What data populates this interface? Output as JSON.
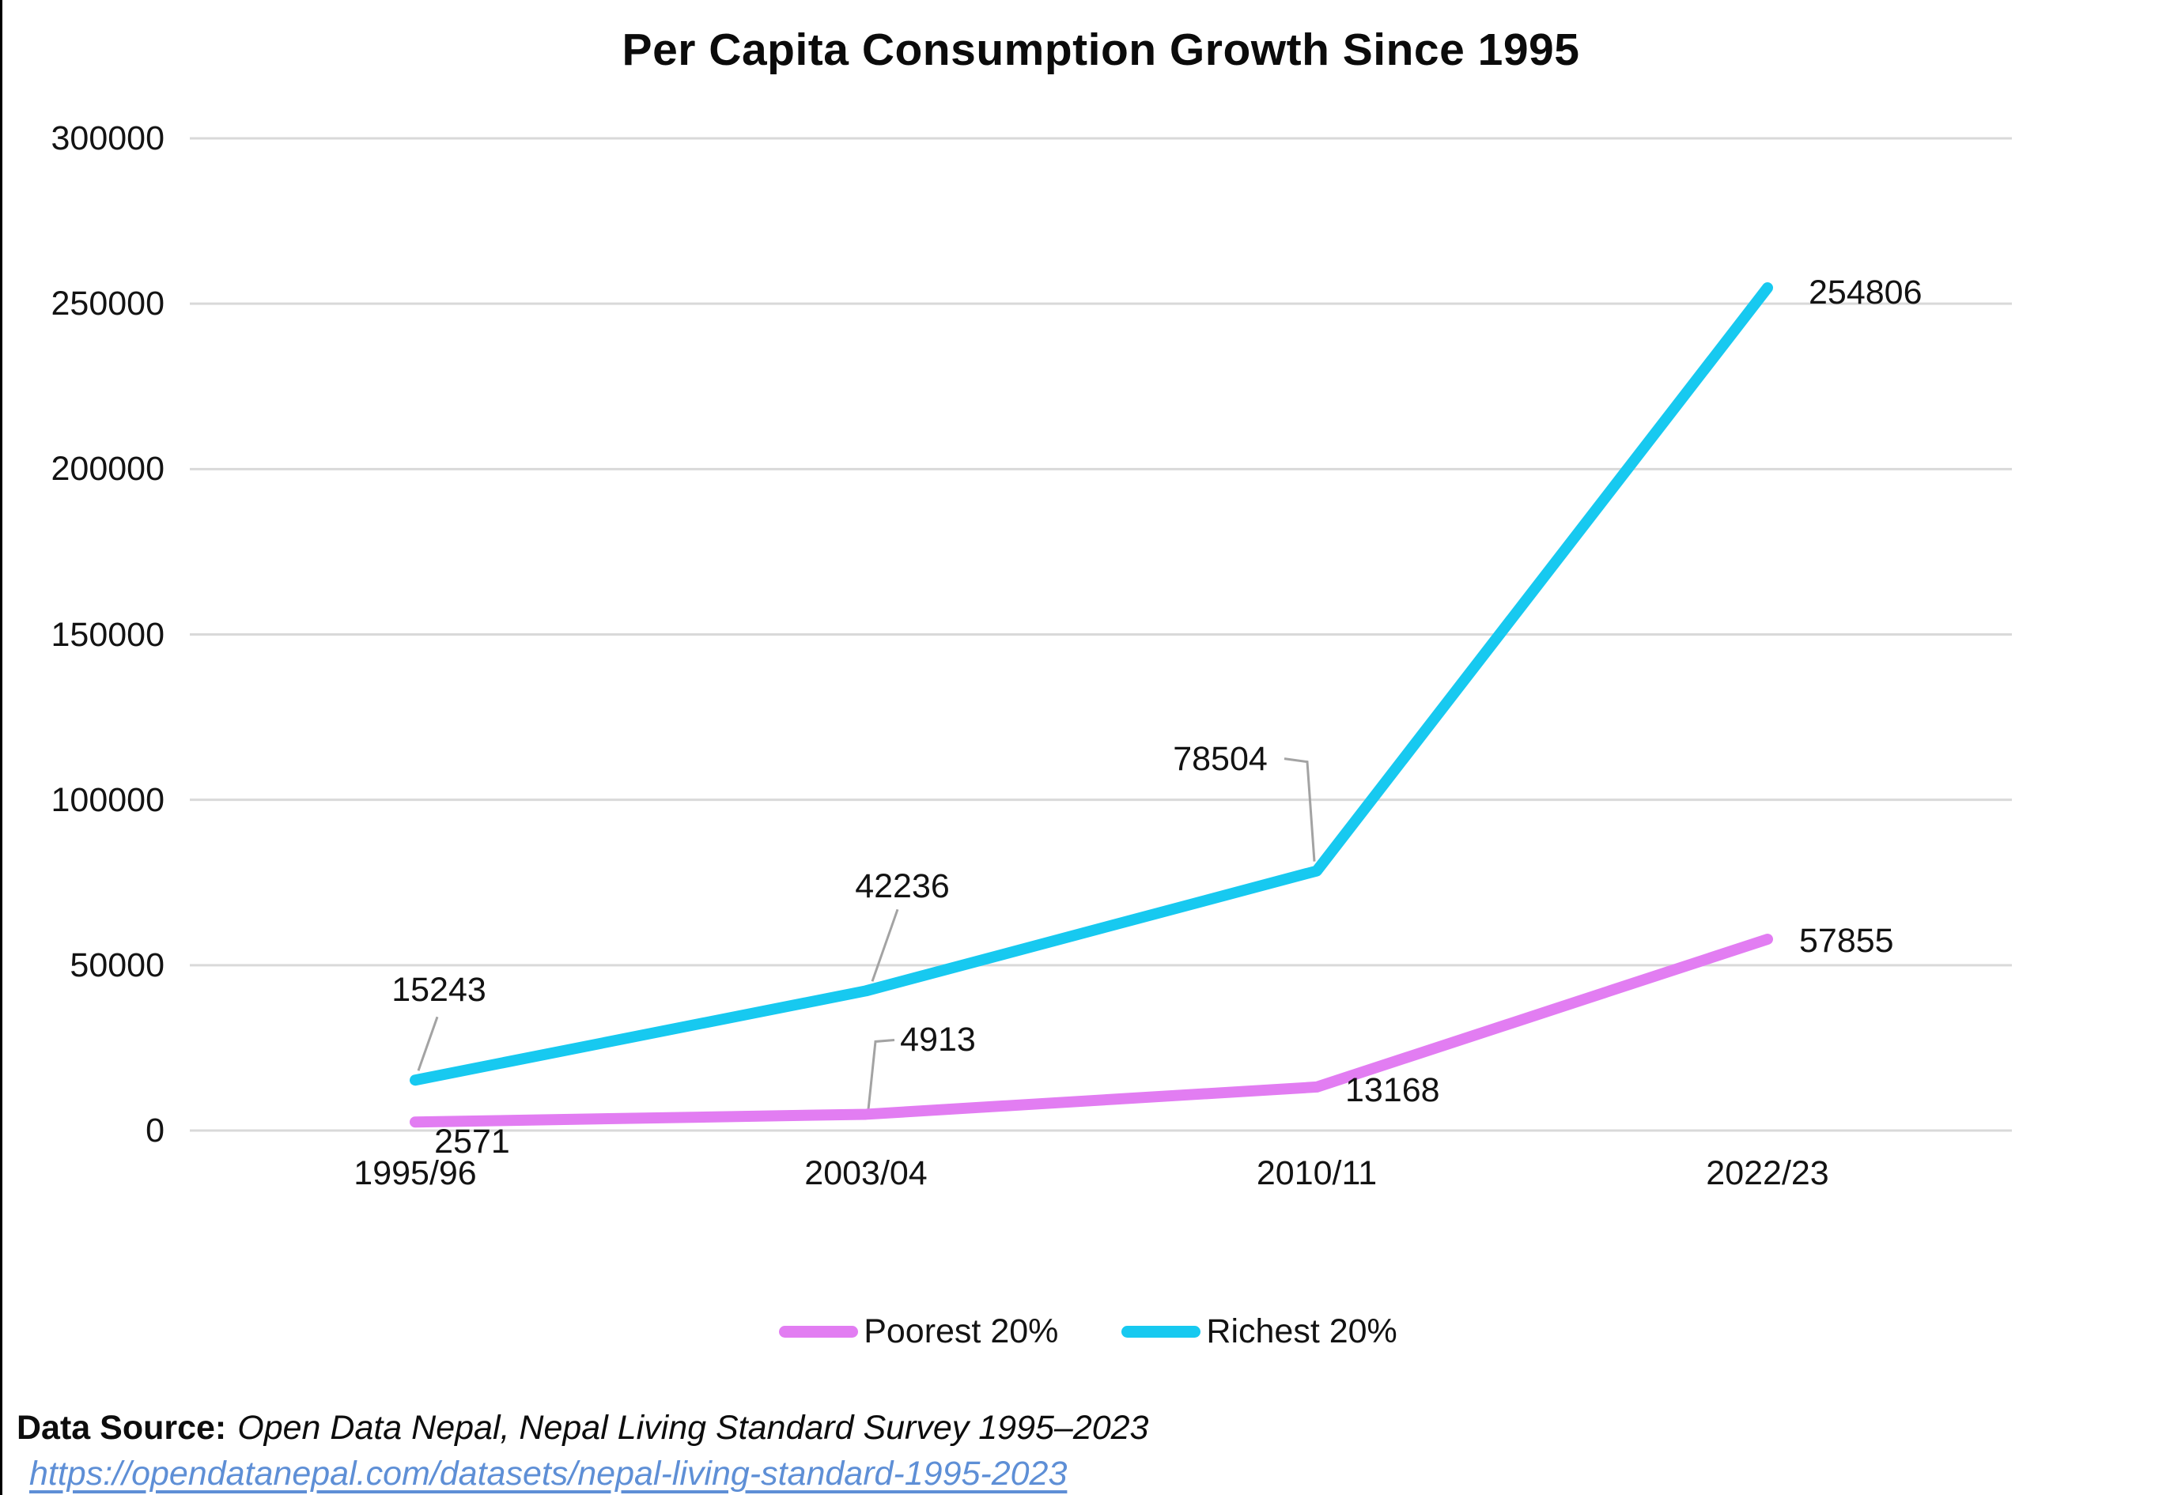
{
  "chart_data": {
    "type": "line",
    "title": "Per Capita Consumption Growth Since 1995",
    "categories": [
      "1995/96",
      "2003/04",
      "2010/11",
      "2022/23"
    ],
    "series": [
      {
        "name": "Poorest 20%",
        "color": "#e27df2",
        "values": [
          2571,
          4913,
          13168,
          57855
        ]
      },
      {
        "name": "Richest 20%",
        "color": "#17c9f0",
        "values": [
          15243,
          42236,
          78504,
          254806
        ]
      }
    ],
    "ylim": [
      0,
      300000
    ],
    "yticks": [
      0,
      50000,
      100000,
      150000,
      200000,
      250000,
      300000
    ],
    "xlabel": "",
    "ylabel": "",
    "grid": "horizontal",
    "grid_color": "#d9d9d9",
    "leader_line_color": "#a3a3a3",
    "legend_position": "bottom",
    "data_labels": true
  },
  "footer": {
    "source_label": "Data Source:",
    "source_text": "Open Data Nepal, Nepal Living Standard Survey 1995–2023",
    "link_text": "https://opendatanepal.com/datasets/nepal-living-standard-1995-2023"
  }
}
